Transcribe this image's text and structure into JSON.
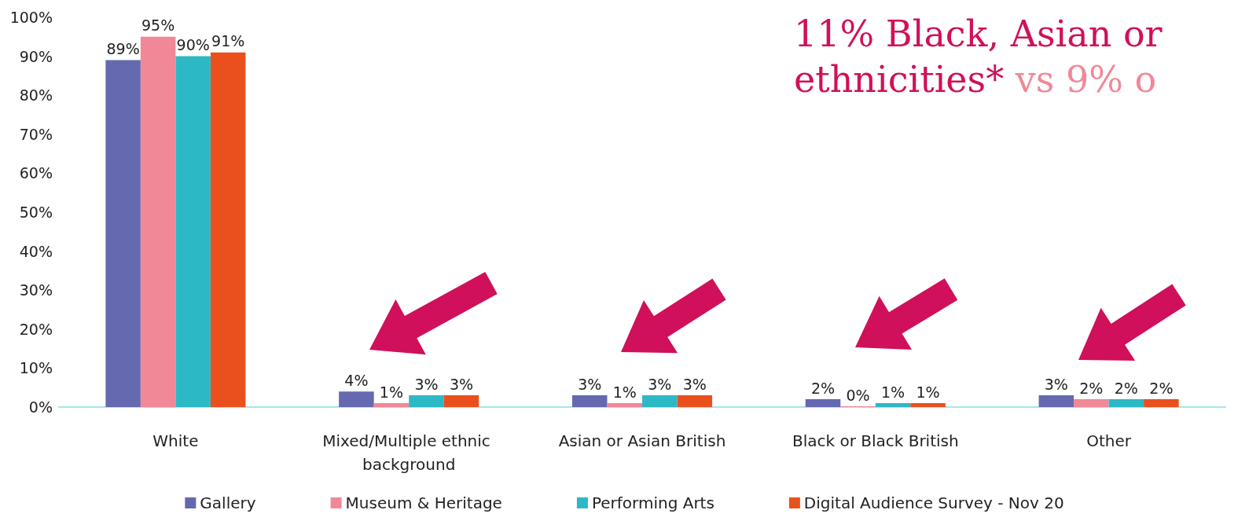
{
  "chart_data": {
    "type": "bar",
    "categories": [
      "White",
      "Mixed/Multiple ethnic background",
      "Asian or Asian British",
      "Black or Black British",
      "Other"
    ],
    "series": [
      {
        "name": "Gallery",
        "color": "#6469b0",
        "values": [
          89,
          4,
          3,
          2,
          3
        ],
        "value_labels": [
          "89%",
          "4%",
          "3%",
          "2%",
          "3%"
        ]
      },
      {
        "name": "Museum & Heritage",
        "color": "#f08898",
        "values": [
          95,
          1,
          1,
          0,
          2
        ],
        "value_labels": [
          "95%",
          "1%",
          "1%",
          "0%",
          "2%"
        ]
      },
      {
        "name": "Performing Arts",
        "color": "#2db8c5",
        "values": [
          90,
          3,
          3,
          1,
          2
        ],
        "value_labels": [
          "90%",
          "3%",
          "3%",
          "1%",
          "2%"
        ]
      },
      {
        "name": "Digital Audience Survey - Nov 20",
        "color": "#e9501e",
        "values": [
          91,
          3,
          3,
          1,
          2
        ],
        "value_labels": [
          "91%",
          "3%",
          "3%",
          "1%",
          "2%"
        ]
      }
    ],
    "ylim": [
      0,
      100
    ],
    "yticks": [
      {
        "value": 0,
        "label": "0%"
      },
      {
        "value": 10,
        "label": "10%"
      },
      {
        "value": 20,
        "label": "20%"
      },
      {
        "value": 30,
        "label": "30%"
      },
      {
        "value": 40,
        "label": "40%"
      },
      {
        "value": 50,
        "label": "50%"
      },
      {
        "value": 60,
        "label": "60%"
      },
      {
        "value": 70,
        "label": "70%"
      },
      {
        "value": 80,
        "label": "80%"
      },
      {
        "value": 90,
        "label": "90%"
      },
      {
        "value": 100,
        "label": "100%"
      }
    ],
    "grid": false,
    "legend": "bottom",
    "annotations": [
      "11% Black, Asian or ethnicities*",
      "vs 9% o"
    ]
  }
}
